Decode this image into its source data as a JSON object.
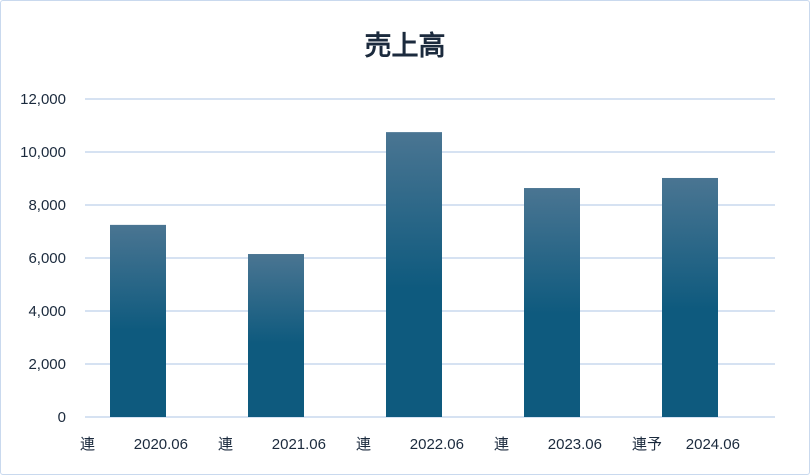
{
  "chart_data": {
    "type": "bar",
    "title": "売上高",
    "xlabel": "",
    "ylabel": "",
    "categories": [
      {
        "prefix": "連",
        "period": "2020.06"
      },
      {
        "prefix": "連",
        "period": "2021.06"
      },
      {
        "prefix": "連",
        "period": "2022.06"
      },
      {
        "prefix": "連",
        "period": "2023.06"
      },
      {
        "prefix": "連予",
        "period": "2024.06"
      }
    ],
    "values": [
      7250,
      6150,
      10750,
      8640,
      9020
    ],
    "ylim": [
      0,
      12000
    ],
    "yticks": [
      0,
      2000,
      4000,
      6000,
      8000,
      10000,
      12000
    ],
    "ytick_labels": [
      "0",
      "2,000",
      "4,000",
      "6,000",
      "8,000",
      "10,000",
      "12,000"
    ],
    "grid": true,
    "legend": "none",
    "colors": {
      "bar_top": "#4a7592",
      "bar_bottom": "#0e5a7e",
      "grid": "#c9d9ee",
      "text": "#1b2a3d"
    }
  }
}
